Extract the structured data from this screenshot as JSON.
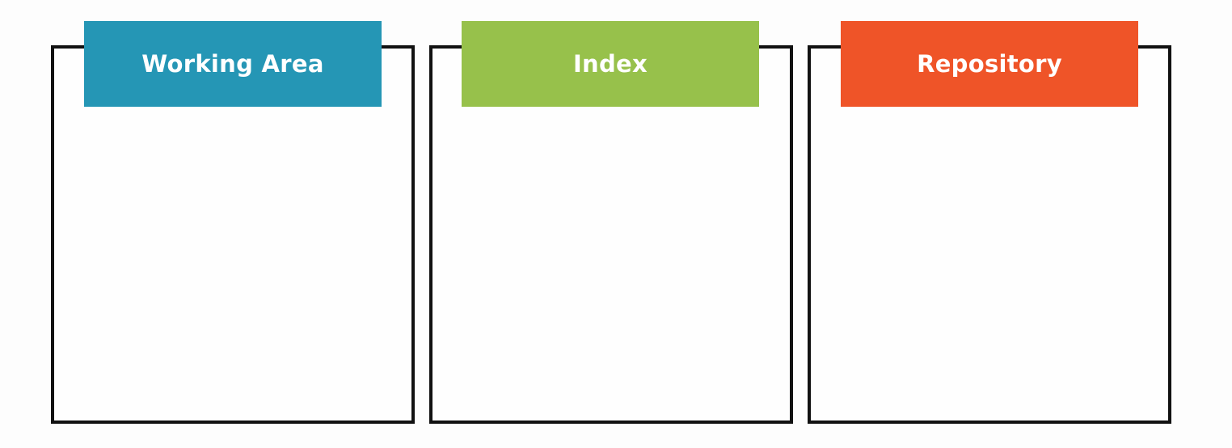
{
  "areas": [
    {
      "title": "Working Area",
      "color": "#2596b5"
    },
    {
      "title": "Index",
      "color": "#97c14b"
    },
    {
      "title": "Repository",
      "color": "#ef5428"
    }
  ]
}
